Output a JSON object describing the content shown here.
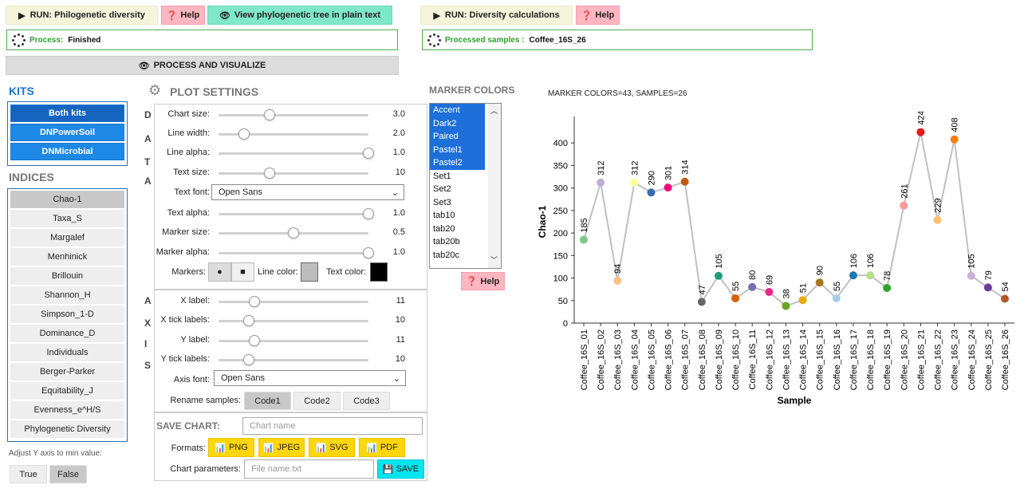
{
  "top": {
    "run_phylo": "RUN: Philogenetic diversity",
    "help1": "Help",
    "view_tree": "View phylogenetic tree in plain text",
    "run_diversity": "RUN: Diversity calculations",
    "help2": "Help",
    "process_label": "Process:",
    "process_value": "Finished",
    "processed_label": "Processed samples :",
    "processed_value": "Coffee_16S_26",
    "process_visualize": "PROCESS AND VISUALIZE"
  },
  "kits": {
    "title": "KITS",
    "items": [
      "Both kits",
      "DNPowerSoil",
      "DNMicrobial"
    ],
    "selected": 0
  },
  "indices": {
    "title": "INDICES",
    "items": [
      "Chao-1",
      "Taxa_S",
      "Margalef",
      "Menhinick",
      "Brillouin",
      "Shannon_H",
      "Simpson_1-D",
      "Dominance_D",
      "Individuals",
      "Berger-Parker",
      "Equitability_J",
      "Evenness_e^H/S",
      "Phylogenetic Diversity"
    ],
    "selected": 0,
    "adjust_label": "Adjust Y axis to min value:",
    "true_label": "True",
    "false_label": "False"
  },
  "plot_settings": {
    "title": "PLOT SETTINGS",
    "data_letters": [
      "D",
      "A",
      "T",
      "A"
    ],
    "axis_letters": [
      "A",
      "X",
      "I",
      "S"
    ],
    "sliders": [
      {
        "label": "Chart size:",
        "value": "3.0",
        "pos": 0.34
      },
      {
        "label": "Line width:",
        "value": "2.0",
        "pos": 0.17
      },
      {
        "label": "Line alpha:",
        "value": "1.0",
        "pos": 1.0
      },
      {
        "label": "Text size:",
        "value": "10",
        "pos": 0.34
      }
    ],
    "text_font_label": "Text font:",
    "text_font_value": "Open Sans",
    "sliders2": [
      {
        "label": "Text alpha:",
        "value": "1.0",
        "pos": 1.0
      },
      {
        "label": "Marker size:",
        "value": "0.5",
        "pos": 0.5
      },
      {
        "label": "Marker alpha:",
        "value": "1.0",
        "pos": 1.0
      }
    ],
    "markers_label": "Markers:",
    "line_color_label": "Line color:",
    "text_color_label": "Text color:",
    "line_color": "#bdbdbd",
    "text_color": "#000000",
    "axis_sliders": [
      {
        "label": "X label:",
        "value": "11",
        "pos": 0.24
      },
      {
        "label": "X tick labels:",
        "value": "10",
        "pos": 0.2
      },
      {
        "label": "Y label:",
        "value": "11",
        "pos": 0.24
      },
      {
        "label": "Y tick labels:",
        "value": "10",
        "pos": 0.2
      }
    ],
    "axis_font_label": "Axis font:",
    "axis_font_value": "Open Sans",
    "rename_label": "Rename samples:",
    "rename_options": [
      "Code1",
      "Code2",
      "Code3"
    ],
    "rename_selected": 0,
    "save_chart_label": "SAVE CHART:",
    "chart_name_placeholder": "Chart name",
    "formats_label": "Formats:",
    "formats": [
      "PNG",
      "JPEG",
      "SVG",
      "PDF"
    ],
    "chart_params_label": "Chart parameters:",
    "file_placeholder": "File name.txt",
    "save_label": "SAVE"
  },
  "marker_colors": {
    "title": "MARKER COLORS",
    "items": [
      "Accent",
      "Dark2",
      "Paired",
      "Pastel1",
      "Pastel2",
      "Set1",
      "Set2",
      "Set3",
      "tab10",
      "tab20",
      "tab20b",
      "tab20c"
    ],
    "selected": [
      0,
      1,
      2,
      3,
      4
    ],
    "help": "Help"
  },
  "chart_data": {
    "type": "line",
    "title": "MARKER COLORS=43, SAMPLES=26",
    "xlabel": "Sample",
    "ylabel": "Chao-1",
    "ylim": [
      0,
      450
    ],
    "yticks": [
      0,
      50,
      100,
      150,
      200,
      250,
      300,
      350,
      400
    ],
    "categories": [
      "Coffee_16S_01",
      "Coffee_16S_02",
      "Coffee_16S_03",
      "Coffee_16S_04",
      "Coffee_16S_05",
      "Coffee_16S_06",
      "Coffee_16S_07",
      "Coffee_16S_08",
      "Coffee_16S_09",
      "Coffee_16S_10",
      "Coffee_16S_11",
      "Coffee_16S_12",
      "Coffee_16S_13",
      "Coffee_16S_14",
      "Coffee_16S_15",
      "Coffee_16S_16",
      "Coffee_16S_17",
      "Coffee_16S_18",
      "Coffee_16S_19",
      "Coffee_16S_20",
      "Coffee_16S_21",
      "Coffee_16S_22",
      "Coffee_16S_23",
      "Coffee_16S_24",
      "Coffee_16S_25",
      "Coffee_16S_26"
    ],
    "values": [
      185,
      312,
      94,
      312,
      290,
      301,
      314,
      47,
      105,
      55,
      80,
      69,
      38,
      51,
      90,
      55,
      106,
      106,
      78,
      261,
      424,
      229,
      408,
      105,
      79,
      54
    ],
    "point_labels": [
      "185",
      "312",
      "94",
      "312",
      "290",
      "301",
      "314",
      "47",
      "105",
      "55",
      "80",
      "69",
      "38",
      "51",
      "90",
      "55",
      "106",
      "106",
      "78",
      "261",
      "424",
      "229",
      "408",
      "105",
      "79",
      "54"
    ],
    "colors": [
      "#7fc97f",
      "#beaed4",
      "#fdc086",
      "#ffff99",
      "#386cb0",
      "#f0027f",
      "#bf5b17",
      "#666666",
      "#1b9e77",
      "#d95f02",
      "#7570b3",
      "#e7298a",
      "#66a61e",
      "#e6ab02",
      "#a6761d",
      "#a6cee3",
      "#1f78b4",
      "#b2df8a",
      "#33a02c",
      "#fb9a99",
      "#e31a1c",
      "#fdbf6f",
      "#ff7f00",
      "#cab2d6",
      "#6a3d9a",
      "#b15928"
    ],
    "line_color": "#c0c0c0"
  }
}
